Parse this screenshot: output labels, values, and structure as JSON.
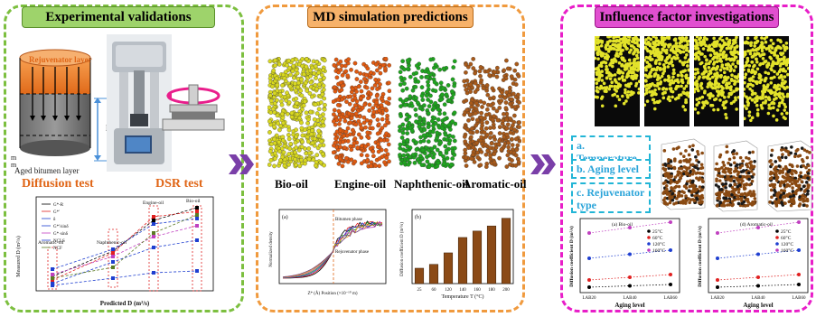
{
  "panels": {
    "left_title": "Experimental validations",
    "middle_title": "MD simulation predictions",
    "right_title": "Influence factor investigations"
  },
  "left": {
    "rejuvenator_layer": "Rejuvenator layer",
    "aged_layer": "Aged bitumen layer",
    "l_mark": "l",
    "m_mark": "m",
    "diffusion_test": "Diffusion test",
    "dsr_test": "DSR test",
    "ylabel": "Measured D (m²/s)",
    "xlabel": "Predicted D (m²/s)",
    "legend": [
      "G*-R",
      "G*'",
      "δ",
      "G*'/sinδ",
      "G*·sinδ",
      "NCLS",
      "NCF"
    ],
    "annotations": [
      "Bio-oil",
      "Engine-oil",
      "Naphthenic-oil",
      "Aromatic-oil"
    ]
  },
  "middle": {
    "oils": [
      "Bio-oil",
      "Engine-oil",
      "Naphthenic-oil",
      "Aromatic-oil"
    ],
    "oil_colors": [
      "#d8d820",
      "#e05a10",
      "#1fa51f",
      "#a85a1a"
    ],
    "curve_panel_tag": "(a)",
    "bitumen_phase": "Bitumen phase",
    "rejuvenator_phase": "Rejuvenator phase",
    "curve_xlabel": "Z* (Å) Position (×10⁻¹⁰ m)",
    "curve_ylabel": "Normalized density",
    "bar_panel_tag": "(b)",
    "bar_xlabel": "Temperature T (°C)",
    "bar_ylabel": "Diffusion coefficient D (m²/s)"
  },
  "right": {
    "factors": [
      "a. Temperature",
      "b. Aging level",
      "c. Rejuvenator type"
    ],
    "chart1_tag": "(a) Bio-oil",
    "chart2_tag": "(d) Aromatic-oil",
    "chart_legend": [
      "25°C",
      "60°C",
      "120°C",
      "160°C"
    ],
    "chart_xlabel": "Aging level",
    "chart_ylabel": "Diffusion coefficient D (m²/s)",
    "x_ticks": [
      "LAB20",
      "LAB40",
      "LAB60"
    ]
  },
  "chart_data": [
    {
      "type": "bar",
      "title": "",
      "xlabel": "Temperature T (°C)",
      "ylabel": "Diffusion coefficient D (m²/s)",
      "categories": [
        "25",
        "60",
        "120",
        "140",
        "160",
        "180",
        "200"
      ],
      "values": [
        1.2,
        1.5,
        2.4,
        3.6,
        4.1,
        4.5,
        5.1
      ],
      "ylim": [
        0,
        5.5
      ]
    },
    {
      "type": "scatter",
      "xlabel": "Predicted D (m²/s)",
      "ylabel": "Measured D (m²/s)",
      "series": [
        {
          "name": "G*-R",
          "values": [
            [
              2.6,
              2.0
            ],
            [
              2.9,
              3.1
            ],
            [
              3.1,
              4.0
            ],
            [
              3.3,
              4.3
            ]
          ]
        },
        {
          "name": "δ",
          "values": [
            [
              2.6,
              1.5
            ],
            [
              2.9,
              3.3
            ],
            [
              3.1,
              5.2
            ],
            [
              3.3,
              5.4
            ]
          ]
        }
      ]
    }
  ]
}
